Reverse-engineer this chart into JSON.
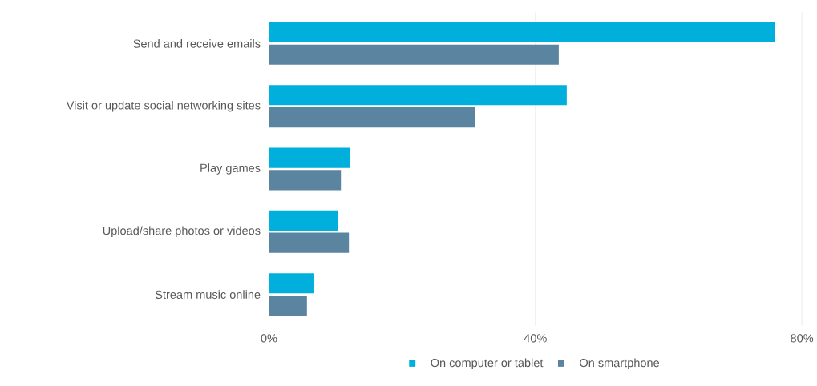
{
  "chart_data": {
    "type": "bar",
    "orientation": "horizontal",
    "categories": [
      "Send and receive emails",
      "Visit or update social networking sites",
      "Play games",
      "Upload/share photos or videos",
      "Stream music online"
    ],
    "series": [
      {
        "name": "On computer or tablet",
        "color": "#00afdb",
        "values": [
          76,
          44.7,
          12.2,
          10.4,
          6.8
        ]
      },
      {
        "name": "On smartphone",
        "color": "#5b84a0",
        "values": [
          43.5,
          30.9,
          10.8,
          12,
          5.7
        ]
      }
    ],
    "xlim": [
      0,
      80
    ],
    "xticks": [
      {
        "value": 0,
        "label": "0%"
      },
      {
        "value": 40,
        "label": "40%"
      },
      {
        "value": 80,
        "label": "80%"
      }
    ],
    "grid": "x",
    "legend": "bottom"
  }
}
